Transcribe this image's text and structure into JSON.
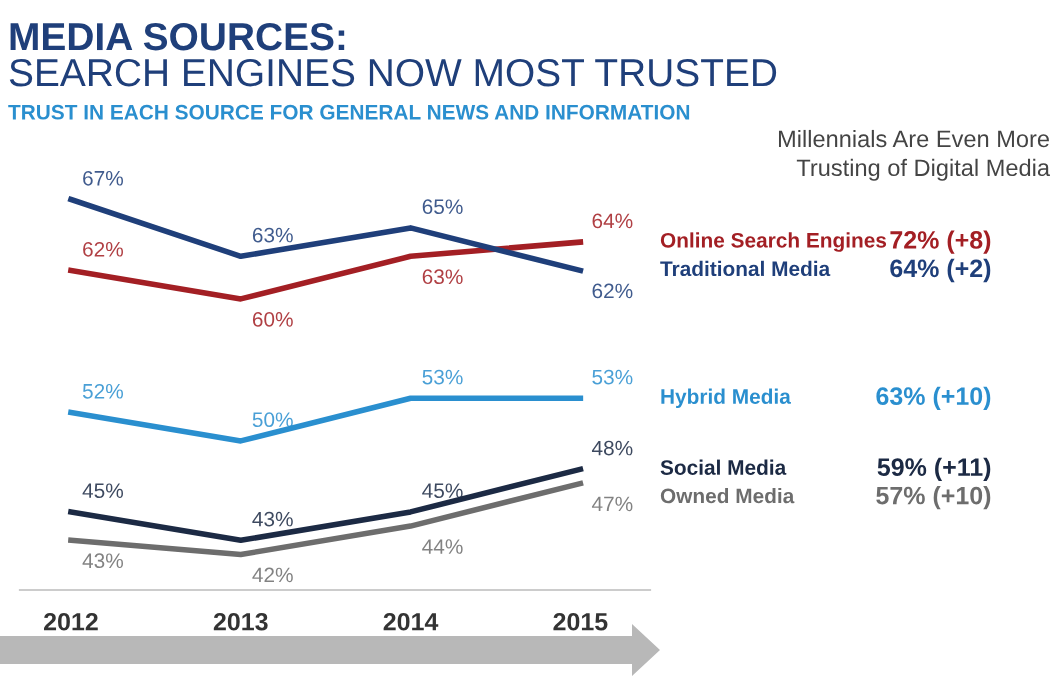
{
  "chart_data": [
    {
      "type": "line",
      "title": "MEDIA SOURCES:",
      "subtitle": "SEARCH ENGINES NOW MOST TRUSTED",
      "annotations": [
        "TRUST IN EACH SOURCE FOR GENERAL NEWS AND INFORMATION"
      ],
      "categories": [
        "2012",
        "2013",
        "2014",
        "2015"
      ],
      "series": [
        {
          "name": "Online Search Engines",
          "color": "#a31f24",
          "values": [
            62,
            60,
            63,
            64
          ],
          "value_labels": [
            "62%",
            "60%",
            "63%",
            "64%"
          ]
        },
        {
          "name": "Traditional Media",
          "color": "#1f3f7a",
          "values": [
            67,
            63,
            65,
            62
          ],
          "value_labels": [
            "67%",
            "63%",
            "65%",
            "62%"
          ]
        },
        {
          "name": "Hybrid Media",
          "color": "#2a8fcf",
          "values": [
            52,
            50,
            53,
            53
          ],
          "value_labels": [
            "52%",
            "50%",
            "53%",
            "53%"
          ]
        },
        {
          "name": "Social Media",
          "color": "#1c2a44",
          "values": [
            45,
            43,
            45,
            48
          ],
          "value_labels": [
            "45%",
            "43%",
            "45%",
            "48%"
          ]
        },
        {
          "name": "Owned Media",
          "color": "#6d6d6d",
          "values": [
            43,
            42,
            44,
            47
          ],
          "value_labels": [
            "43%",
            "42%",
            "44%",
            "47%"
          ]
        }
      ],
      "tick_labels": "x",
      "legend": "right"
    },
    {
      "type": "other",
      "title": "Millennials Are Even More Trusting of Digital Media",
      "annotations": [
        "72% (+8)",
        "64% (+2)",
        "63% (+10)",
        "59% (+11)",
        "57% (+10)"
      ]
    }
  ]
}
